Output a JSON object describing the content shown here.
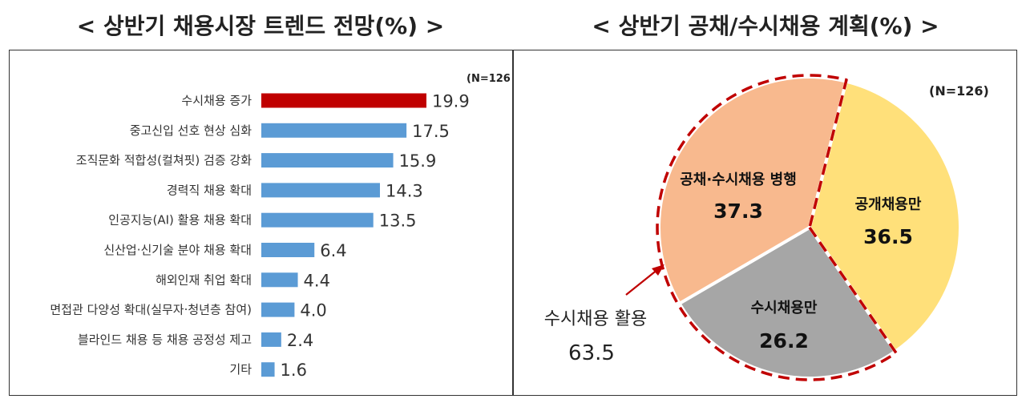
{
  "chart_data": [
    {
      "type": "bar",
      "title": "< 상반기 채용시장 트렌드 전망(%) >",
      "sample_note": "(N=126)",
      "categories": [
        "수시채용 증가",
        "중고신입 선호 현상 심화",
        "조직문화 적합성(컬쳐핏) 검증 강화",
        "경력직 채용 확대",
        "인공지능(AI) 활용 채용 확대",
        "신산업·신기술 분야 채용 확대",
        "해외인재 취업 확대",
        "면접관 다양성 확대(실무자·청년층 참여)",
        "블라인드 채용 등 채용 공정성 제고",
        "기타"
      ],
      "values": [
        19.9,
        17.5,
        15.9,
        14.3,
        13.5,
        6.4,
        4.4,
        4.0,
        2.4,
        1.6
      ],
      "value_labels": [
        "19.9",
        "17.5",
        "15.9",
        "14.3",
        "13.5",
        "6.4",
        "4.4",
        "4.0",
        "2.4",
        "1.6"
      ],
      "orientation": "horizontal",
      "highlight_color": "#c00000",
      "bar_color": "#5b9bd5"
    },
    {
      "type": "pie",
      "title": "< 상반기 공채/수시채용 계획(%) >",
      "sample_note": "(N=126)",
      "slices": [
        {
          "label": "공개채용만",
          "value": 36.5,
          "value_label": "36.5",
          "color": "#ffe07a"
        },
        {
          "label": "수시채용만",
          "value": 26.2,
          "value_label": "26.2",
          "color": "#a6a6a6"
        },
        {
          "label": "공채·수시채용 병행",
          "value": 37.3,
          "value_label": "37.3",
          "color": "#f8b98e"
        }
      ],
      "annotation": {
        "label": "수시채용 활용",
        "value": "63.5",
        "outline_color": "#c00000"
      }
    }
  ]
}
